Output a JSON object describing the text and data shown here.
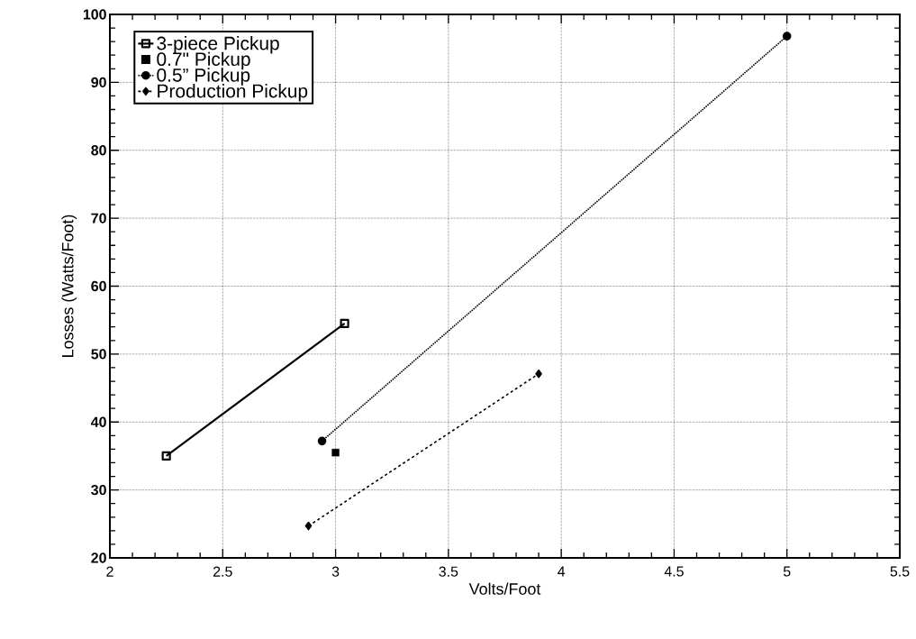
{
  "chart_data": {
    "type": "line",
    "xlabel": "Volts/Foot",
    "ylabel": "Losses (Watts/Foot)",
    "xlim": [
      2,
      5.5
    ],
    "xticks": [
      2,
      2.5,
      3,
      3.5,
      4,
      4.5,
      5,
      5.5
    ],
    "ylim": [
      20,
      100
    ],
    "yticks": [
      20,
      30,
      40,
      50,
      60,
      70,
      80,
      90,
      100
    ],
    "grid": true,
    "legend": "top left",
    "series": [
      {
        "name": "3-piece Pickup",
        "color": "#000000",
        "marker": "square",
        "line_style": "solid",
        "x": [
          2.25,
          3.04
        ],
        "values": [
          35,
          54.5
        ]
      },
      {
        "name": "0.7\" Pickup",
        "color": "#000000",
        "type": "scatter",
        "marker": "square",
        "x": [
          3.0
        ],
        "values": [
          35.5
        ]
      },
      {
        "name": "0.5” Pickup",
        "color": "#000000",
        "marker": "circle",
        "line_style": "dotted",
        "x": [
          2.94,
          5.0
        ],
        "values": [
          37.2,
          96.8
        ]
      },
      {
        "name": "Production Pickup",
        "color": "#000000",
        "marker": "diamond",
        "line_style": "dashed",
        "x": [
          2.88,
          3.9
        ],
        "values": [
          24.7,
          47.1
        ]
      }
    ]
  }
}
